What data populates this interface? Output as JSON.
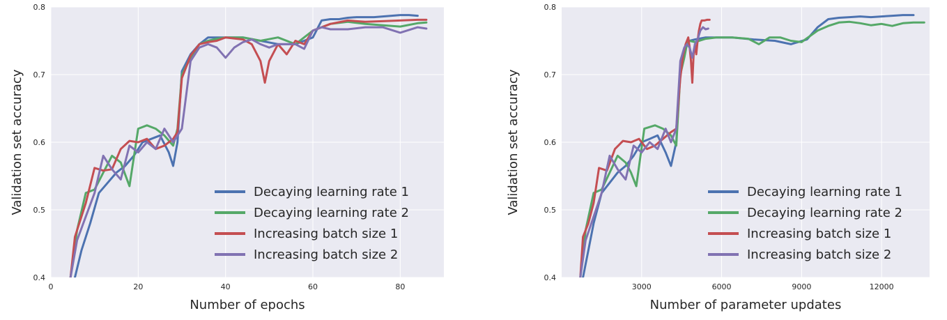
{
  "colors": {
    "plot_bg": "#EAEAF2",
    "grid": "#FFFFFF",
    "series": [
      "#4C72B0",
      "#55A868",
      "#C44E52",
      "#8172B2"
    ]
  },
  "chart_data": [
    {
      "type": "line",
      "title": "",
      "xlabel": "Number of epochs",
      "ylabel": "Validation set accuracy",
      "xlim": [
        0,
        90
      ],
      "ylim": [
        0.4,
        0.8
      ],
      "xticks": [
        0,
        20,
        40,
        60,
        80
      ],
      "xtick_labels": [
        "0",
        "20",
        "40",
        "60",
        "80"
      ],
      "yticks": [
        0.4,
        0.5,
        0.6,
        0.7,
        0.8
      ],
      "ytick_labels": [
        "0.4",
        "0.5",
        "0.6",
        "0.7",
        "0.8"
      ],
      "grid": true,
      "legend": "lower-right",
      "series": [
        {
          "name": "Decaying learning rate 1",
          "x": [
            5.5,
            7,
            9,
            11,
            13,
            15,
            17,
            19,
            21,
            23,
            25,
            27,
            28,
            29,
            30,
            32,
            34,
            36,
            38,
            40,
            44,
            48,
            52,
            56,
            60,
            62,
            64,
            66,
            68,
            70,
            72,
            74,
            76,
            78,
            80,
            82,
            84
          ],
          "y": [
            0.4,
            0.44,
            0.48,
            0.525,
            0.54,
            0.555,
            0.565,
            0.58,
            0.6,
            0.605,
            0.61,
            0.585,
            0.565,
            0.6,
            0.705,
            0.73,
            0.745,
            0.755,
            0.755,
            0.755,
            0.755,
            0.75,
            0.745,
            0.745,
            0.755,
            0.78,
            0.782,
            0.782,
            0.784,
            0.785,
            0.785,
            0.785,
            0.786,
            0.787,
            0.788,
            0.788,
            0.787
          ]
        },
        {
          "name": "Decaying learning rate 2",
          "x": [
            4.5,
            6,
            8,
            10,
            12,
            14,
            16,
            18,
            20,
            22,
            24,
            26,
            28,
            29,
            30,
            32,
            34,
            36,
            38,
            40,
            44,
            48,
            52,
            56,
            60,
            64,
            68,
            72,
            76,
            80,
            84,
            86
          ],
          "y": [
            0.4,
            0.47,
            0.525,
            0.53,
            0.555,
            0.58,
            0.57,
            0.535,
            0.62,
            0.625,
            0.62,
            0.61,
            0.595,
            0.62,
            0.7,
            0.725,
            0.745,
            0.75,
            0.753,
            0.755,
            0.755,
            0.75,
            0.755,
            0.745,
            0.765,
            0.775,
            0.778,
            0.775,
            0.773,
            0.771,
            0.776,
            0.777
          ]
        },
        {
          "name": "Increasing batch size 1",
          "x": [
            4.5,
            5.5,
            8,
            10,
            12,
            14,
            16,
            18,
            20,
            22,
            24,
            26,
            28,
            29,
            30,
            32,
            34,
            36,
            38,
            40,
            44,
            46,
            48,
            49,
            50,
            52,
            54,
            56,
            58,
            60,
            64,
            68,
            72,
            76,
            80,
            84,
            86
          ],
          "y": [
            0.4,
            0.46,
            0.51,
            0.562,
            0.558,
            0.56,
            0.59,
            0.602,
            0.6,
            0.605,
            0.59,
            0.595,
            0.605,
            0.615,
            0.695,
            0.728,
            0.745,
            0.748,
            0.75,
            0.755,
            0.752,
            0.745,
            0.72,
            0.688,
            0.72,
            0.745,
            0.73,
            0.75,
            0.745,
            0.765,
            0.775,
            0.78,
            0.778,
            0.779,
            0.78,
            0.781,
            0.781
          ]
        },
        {
          "name": "Increasing batch size 2",
          "x": [
            4.5,
            6,
            8,
            10,
            12,
            14,
            16,
            18,
            20,
            22,
            24,
            26,
            28,
            30,
            32,
            34,
            36,
            38,
            40,
            42,
            44,
            46,
            48,
            50,
            52,
            56,
            58,
            60,
            62,
            64,
            68,
            72,
            76,
            80,
            84,
            86
          ],
          "y": [
            0.4,
            0.455,
            0.49,
            0.525,
            0.58,
            0.56,
            0.545,
            0.595,
            0.585,
            0.6,
            0.59,
            0.62,
            0.6,
            0.62,
            0.72,
            0.74,
            0.745,
            0.74,
            0.725,
            0.74,
            0.748,
            0.752,
            0.745,
            0.74,
            0.745,
            0.745,
            0.738,
            0.765,
            0.77,
            0.767,
            0.767,
            0.77,
            0.77,
            0.762,
            0.77,
            0.768
          ]
        }
      ]
    },
    {
      "type": "line",
      "title": "",
      "xlabel": "Number of parameter updates",
      "ylabel": "Validation set accuracy",
      "xlim": [
        0,
        13800
      ],
      "ylim": [
        0.4,
        0.8
      ],
      "xticks": [
        3000,
        6000,
        9000,
        12000
      ],
      "xtick_labels": [
        "3000",
        "6000",
        "9000",
        "12000"
      ],
      "yticks": [
        0.4,
        0.5,
        0.6,
        0.7,
        0.8
      ],
      "ytick_labels": [
        "0.4",
        "0.5",
        "0.6",
        "0.7",
        "0.8"
      ],
      "grid": true,
      "legend": "lower-right",
      "series": [
        {
          "name": "Decaying learning rate 1",
          "x": [
            800,
            1000,
            1200,
            1500,
            1800,
            2100,
            2400,
            2700,
            3000,
            3300,
            3600,
            3900,
            4100,
            4300,
            4450,
            4600,
            4700,
            4800,
            5000,
            5400,
            5800,
            6400,
            7200,
            8000,
            8600,
            9200,
            9600,
            10000,
            10400,
            10800,
            11200,
            11600,
            12000,
            12400,
            12800,
            13200
          ],
          "y": [
            0.4,
            0.44,
            0.48,
            0.525,
            0.54,
            0.555,
            0.565,
            0.58,
            0.6,
            0.605,
            0.61,
            0.585,
            0.565,
            0.6,
            0.705,
            0.73,
            0.745,
            0.75,
            0.752,
            0.755,
            0.755,
            0.755,
            0.752,
            0.75,
            0.745,
            0.752,
            0.77,
            0.782,
            0.784,
            0.785,
            0.786,
            0.785,
            0.786,
            0.787,
            0.788,
            0.788
          ]
        },
        {
          "name": "Decaying learning rate 2",
          "x": [
            700,
            900,
            1200,
            1500,
            1800,
            2100,
            2400,
            2600,
            2800,
            3100,
            3500,
            3800,
            4100,
            4300,
            4450,
            4600,
            4700,
            4800,
            5000,
            5400,
            5800,
            6400,
            7000,
            7400,
            7800,
            8200,
            8600,
            9000,
            9600,
            10000,
            10400,
            10800,
            11200,
            11600,
            12000,
            12400,
            12800,
            13200,
            13600
          ],
          "y": [
            0.4,
            0.47,
            0.525,
            0.53,
            0.555,
            0.58,
            0.57,
            0.555,
            0.535,
            0.62,
            0.625,
            0.62,
            0.61,
            0.595,
            0.7,
            0.725,
            0.745,
            0.75,
            0.748,
            0.753,
            0.755,
            0.755,
            0.753,
            0.745,
            0.755,
            0.755,
            0.75,
            0.748,
            0.765,
            0.772,
            0.777,
            0.778,
            0.776,
            0.773,
            0.775,
            0.772,
            0.776,
            0.777,
            0.777
          ]
        },
        {
          "name": "Increasing batch size 1",
          "x": [
            700,
            800,
            1000,
            1200,
            1400,
            1700,
            2000,
            2300,
            2600,
            2900,
            3200,
            3500,
            3800,
            4100,
            4300,
            4450,
            4550,
            4650,
            4700,
            4750,
            4800,
            4850,
            4900,
            4950,
            5000,
            5050,
            5100,
            5150,
            5200,
            5250,
            5350,
            5450,
            5550
          ],
          "y": [
            0.4,
            0.46,
            0.48,
            0.51,
            0.562,
            0.558,
            0.59,
            0.602,
            0.6,
            0.605,
            0.59,
            0.595,
            0.605,
            0.615,
            0.62,
            0.695,
            0.728,
            0.745,
            0.75,
            0.755,
            0.74,
            0.72,
            0.688,
            0.73,
            0.745,
            0.73,
            0.75,
            0.765,
            0.775,
            0.78,
            0.78,
            0.781,
            0.781
          ]
        },
        {
          "name": "Increasing batch size 2",
          "x": [
            700,
            900,
            1200,
            1500,
            1800,
            2100,
            2400,
            2700,
            3000,
            3300,
            3600,
            3900,
            4100,
            4300,
            4450,
            4600,
            4700,
            4800,
            4900,
            5000,
            5100,
            5200,
            5300,
            5400,
            5500
          ],
          "y": [
            0.4,
            0.455,
            0.49,
            0.525,
            0.58,
            0.56,
            0.545,
            0.595,
            0.585,
            0.6,
            0.59,
            0.62,
            0.6,
            0.62,
            0.72,
            0.74,
            0.745,
            0.74,
            0.725,
            0.745,
            0.752,
            0.765,
            0.77,
            0.767,
            0.768
          ]
        }
      ]
    }
  ]
}
